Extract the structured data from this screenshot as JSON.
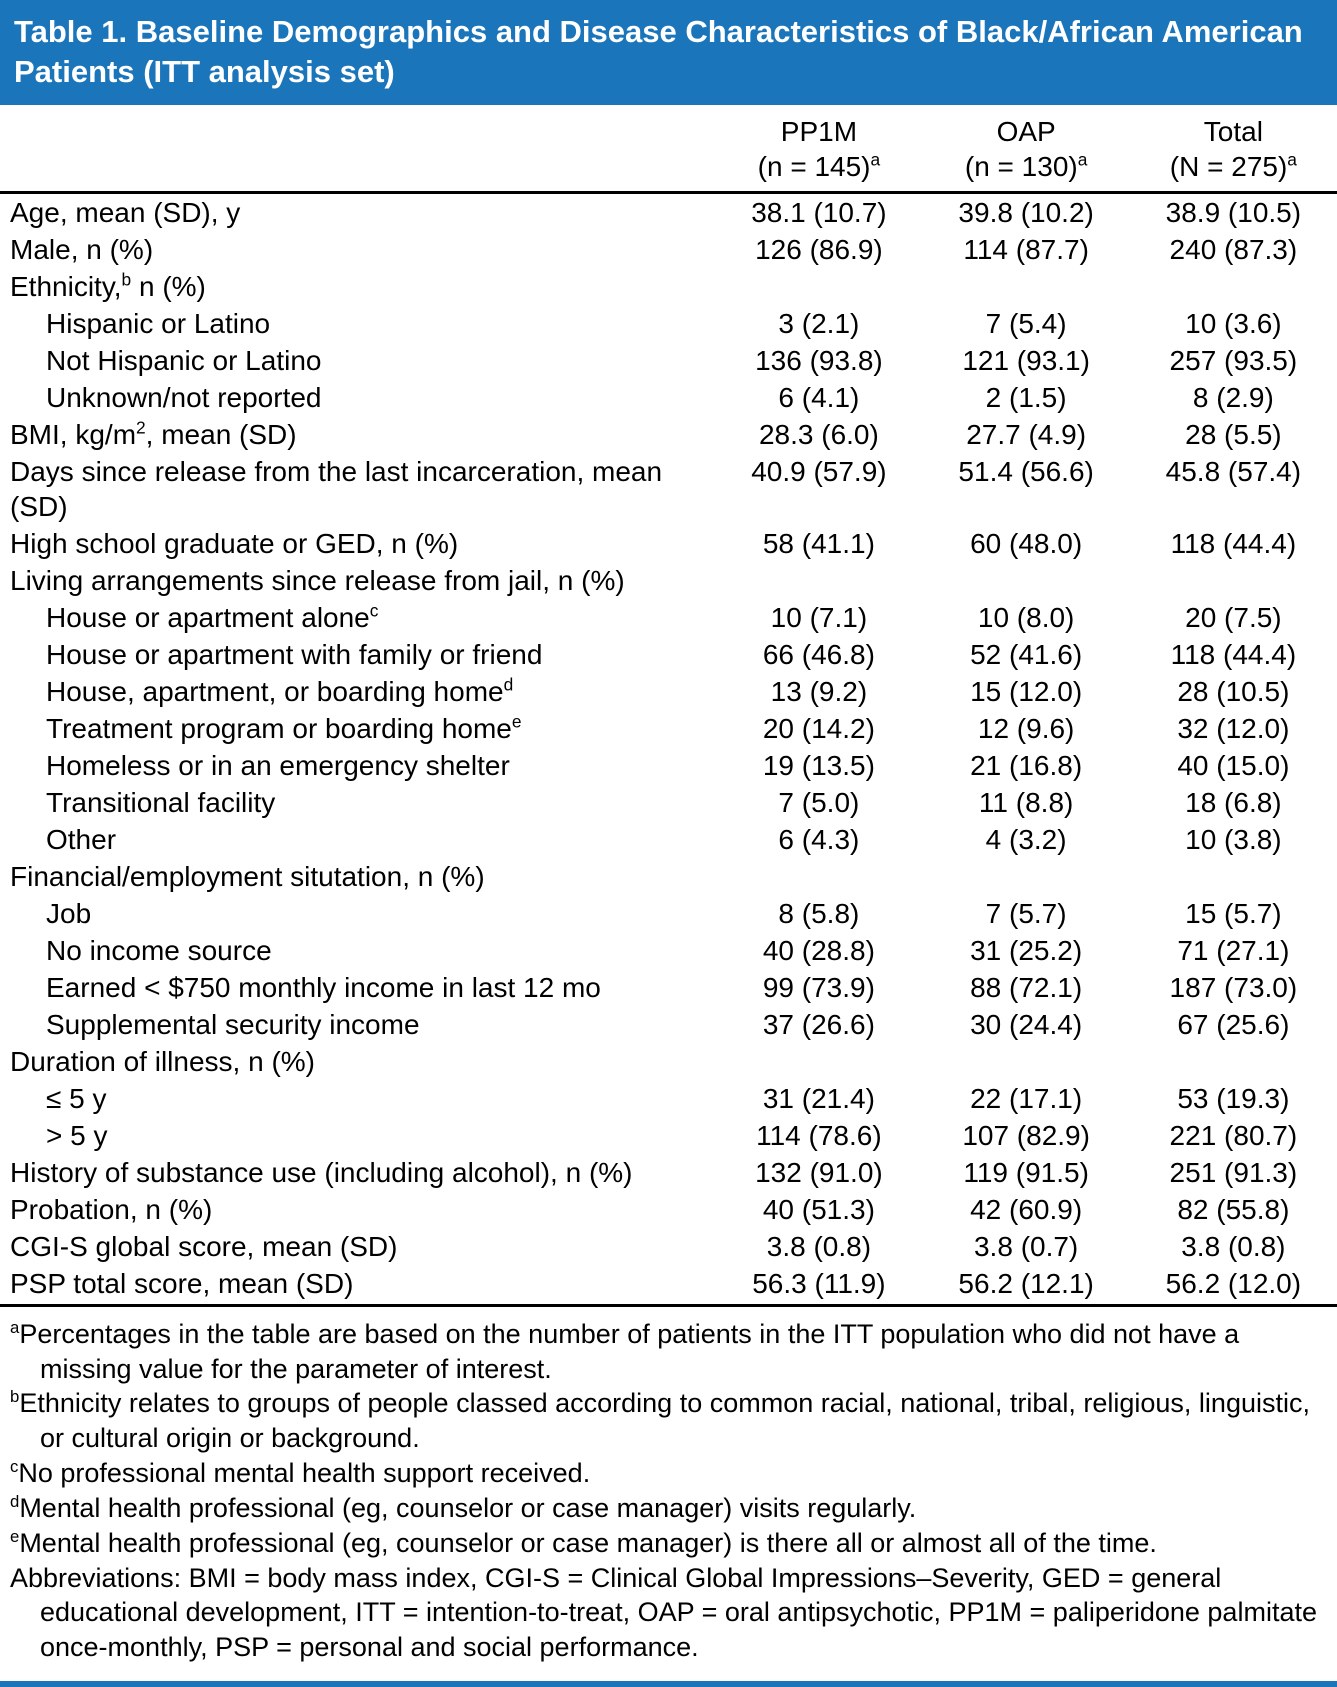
{
  "colors": {
    "header_bg": "#1b75bb",
    "header_text": "#ffffff",
    "rule_black": "#000000"
  },
  "title": "Table 1. Baseline Demographics and Disease Characteristics of Black/African American Patients (ITT analysis set)",
  "table": {
    "columns": [
      {
        "line1": "PP1M",
        "line2": "(n = 145)",
        "sup": "a"
      },
      {
        "line1": "OAP",
        "line2": "(n = 130)",
        "sup": "a"
      },
      {
        "line1": "Total",
        "line2": "(N = 275)",
        "sup": "a"
      }
    ],
    "rows": [
      {
        "pre": "Age, mean (SD), y",
        "pp1m": "38.1 (10.7)",
        "oap": "39.8 (10.2)",
        "total": "38.9 (10.5)"
      },
      {
        "pre": "Male, n (%)",
        "pp1m": "126 (86.9)",
        "oap": "114 (87.7)",
        "total": "240 (87.3)"
      },
      {
        "pre": "Ethnicity,",
        "sup": "b",
        "post": " n (%)",
        "pp1m": "",
        "oap": "",
        "total": ""
      },
      {
        "pre": "Hispanic or Latino",
        "pp1m": "3 (2.1)",
        "oap": "7 (5.4)",
        "total": "10 (3.6)"
      },
      {
        "pre": "Not Hispanic or Latino",
        "pp1m": "136 (93.8)",
        "oap": "121 (93.1)",
        "total": "257 (93.5)"
      },
      {
        "pre": "Unknown/not reported",
        "pp1m": "6 (4.1)",
        "oap": "2 (1.5)",
        "total": "8 (2.9)"
      },
      {
        "pre": "BMI, kg/m",
        "sup": "2",
        "post": ", mean (SD)",
        "pp1m": "28.3 (6.0)",
        "oap": "27.7 (4.9)",
        "total": "28 (5.5)"
      },
      {
        "pre": "Days since release from the last incarceration, mean (SD)",
        "pp1m": "40.9 (57.9)",
        "oap": "51.4 (56.6)",
        "total": "45.8 (57.4)"
      },
      {
        "pre": "High school graduate or GED, n (%)",
        "pp1m": "58 (41.1)",
        "oap": "60 (48.0)",
        "total": "118 (44.4)"
      },
      {
        "pre": "Living arrangements since release from jail, n (%)",
        "pp1m": "",
        "oap": "",
        "total": ""
      },
      {
        "pre": "House or apartment alone",
        "sup": "c",
        "pp1m": "10 (7.1)",
        "oap": "10 (8.0)",
        "total": "20 (7.5)"
      },
      {
        "pre": "House or apartment with family or friend",
        "pp1m": "66 (46.8)",
        "oap": "52 (41.6)",
        "total": "118 (44.4)"
      },
      {
        "pre": "House, apartment, or boarding home",
        "sup": "d",
        "pp1m": "13 (9.2)",
        "oap": "15 (12.0)",
        "total": "28 (10.5)"
      },
      {
        "pre": "Treatment program or boarding home",
        "sup": "e",
        "pp1m": "20 (14.2)",
        "oap": "12 (9.6)",
        "total": "32 (12.0)"
      },
      {
        "pre": "Homeless or in an emergency shelter",
        "pp1m": "19 (13.5)",
        "oap": "21 (16.8)",
        "total": "40 (15.0)"
      },
      {
        "pre": "Transitional facility",
        "pp1m": "7 (5.0)",
        "oap": "11 (8.8)",
        "total": "18 (6.8)"
      },
      {
        "pre": "Other",
        "pp1m": "6 (4.3)",
        "oap": "4 (3.2)",
        "total": "10 (3.8)"
      },
      {
        "pre": "Financial/employment situtation, n (%)",
        "pp1m": "",
        "oap": "",
        "total": ""
      },
      {
        "pre": "Job",
        "pp1m": "8 (5.8)",
        "oap": "7 (5.7)",
        "total": "15 (5.7)"
      },
      {
        "pre": "No income source",
        "pp1m": "40 (28.8)",
        "oap": "31 (25.2)",
        "total": "71 (27.1)"
      },
      {
        "pre": "Earned < $750 monthly income in last 12 mo",
        "pp1m": "99 (73.9)",
        "oap": "88 (72.1)",
        "total": "187 (73.0)"
      },
      {
        "pre": "Supplemental security income",
        "pp1m": "37 (26.6)",
        "oap": "30 (24.4)",
        "total": "67 (25.6)"
      },
      {
        "pre": "Duration of illness, n (%)",
        "pp1m": "",
        "oap": "",
        "total": ""
      },
      {
        "pre": "≤ 5 y",
        "pp1m": "31 (21.4)",
        "oap": "22 (17.1)",
        "total": "53 (19.3)"
      },
      {
        "pre": "> 5 y",
        "pp1m": "114 (78.6)",
        "oap": "107 (82.9)",
        "total": "221 (80.7)"
      },
      {
        "pre": "History of substance use (including alcohol), n (%)",
        "pp1m": "132 (91.0)",
        "oap": "119 (91.5)",
        "total": "251 (91.3)"
      },
      {
        "pre": "Probation, n (%)",
        "pp1m": "40 (51.3)",
        "oap": "42 (60.9)",
        "total": "82 (55.8)"
      },
      {
        "pre": "CGI-S global score, mean (SD)",
        "pp1m": "3.8 (0.8)",
        "oap": "3.8 (0.7)",
        "total": "3.8 (0.8)"
      },
      {
        "pre": "PSP total score, mean (SD)",
        "pp1m": "56.3 (11.9)",
        "oap": "56.2 (12.1)",
        "total": "56.2 (12.0)"
      }
    ]
  },
  "footnotes": [
    {
      "sup": "a",
      "text": "Percentages in the table are based on the number of patients in the ITT population who did not have a missing value for the parameter of interest."
    },
    {
      "sup": "b",
      "text": "Ethnicity relates to groups of people classed according to common racial, national, tribal, religious, linguistic, or cultural origin or background."
    },
    {
      "sup": "c",
      "text": "No professional mental health support received."
    },
    {
      "sup": "d",
      "text": "Mental health professional (eg, counselor or case manager) visits regularly."
    },
    {
      "sup": "e",
      "text": "Mental health professional (eg, counselor or case manager) is there all or almost all of the time."
    },
    {
      "sup": "",
      "text": "Abbreviations: BMI = body mass index, CGI-S = Clinical Global Impressions–Severity, GED = general educational development, ITT = intention-to-treat, OAP = oral antipsychotic, PP1M = paliperidone palmitate once-monthly, PSP = personal and social performance."
    }
  ]
}
